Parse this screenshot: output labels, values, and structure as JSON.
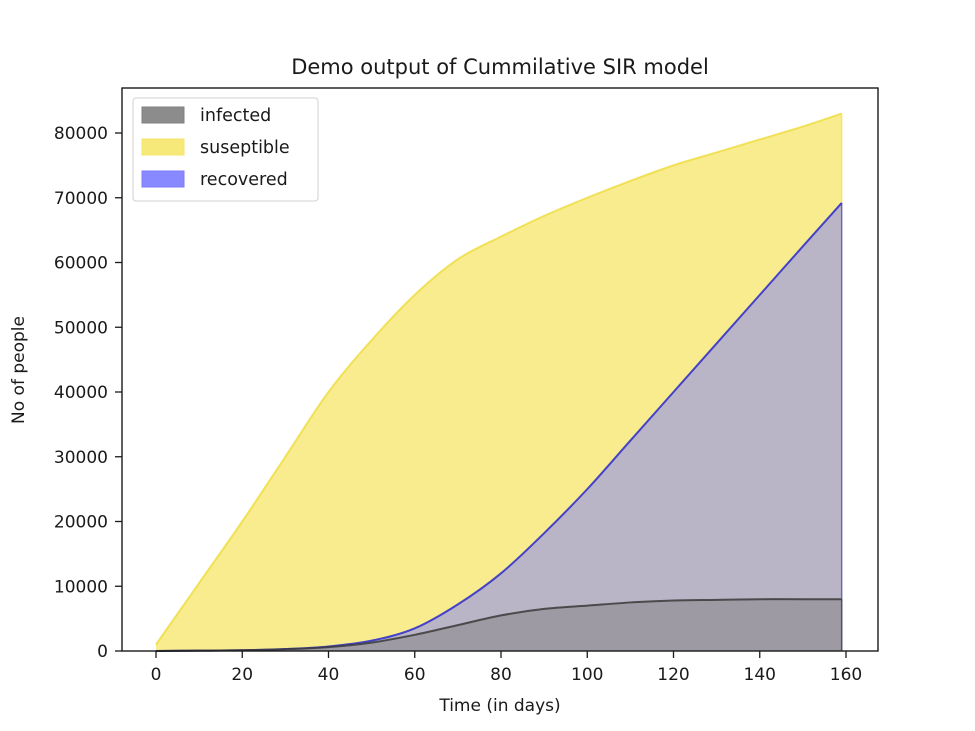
{
  "chart_data": {
    "type": "area",
    "title": "Demo output of Cummilative SIR model",
    "xlabel": "Time (in days)",
    "ylabel": "No of people",
    "xlim": [
      -9,
      167
    ],
    "ylim": [
      0,
      85000
    ],
    "xticks": [
      0,
      20,
      40,
      60,
      80,
      100,
      120,
      140,
      160
    ],
    "yticks": [
      0,
      10000,
      20000,
      30000,
      40000,
      50000,
      60000,
      70000,
      80000
    ],
    "grid": false,
    "legend_position": "upper left",
    "x": [
      0,
      10,
      20,
      30,
      40,
      50,
      60,
      70,
      80,
      90,
      100,
      110,
      120,
      130,
      140,
      150,
      159
    ],
    "series": [
      {
        "name": "infected",
        "fill_color": "#808080",
        "edge_color": "#3a3a3a",
        "values": [
          0,
          50,
          120,
          280,
          600,
          1300,
          2500,
          4000,
          5500,
          6500,
          7000,
          7500,
          7800,
          7900,
          8000,
          8000,
          8000
        ]
      },
      {
        "name": "suseptible",
        "fill_color": "#f5e66a",
        "edge_color": "#eedd44",
        "values": [
          1000,
          10500,
          20000,
          30000,
          40000,
          48000,
          55000,
          60500,
          64000,
          67200,
          70000,
          72600,
          75000,
          77000,
          79000,
          81000,
          83000
        ]
      },
      {
        "name": "recovered",
        "fill_color": "#7b7bff",
        "edge_color": "#2929cc",
        "values": [
          0,
          50,
          120,
          300,
          700,
          1600,
          3500,
          7200,
          12000,
          18200,
          25000,
          32500,
          40000,
          47500,
          55000,
          62500,
          69200
        ]
      }
    ]
  },
  "legend": {
    "items": [
      {
        "label": "infected",
        "color": "#808080"
      },
      {
        "label": "suseptible",
        "color": "#f5e66a"
      },
      {
        "label": "recovered",
        "color": "#7b7bff"
      }
    ]
  },
  "title": "Demo output of Cummilative SIR model",
  "xlabel": "Time (in days)",
  "ylabel": "No of people"
}
